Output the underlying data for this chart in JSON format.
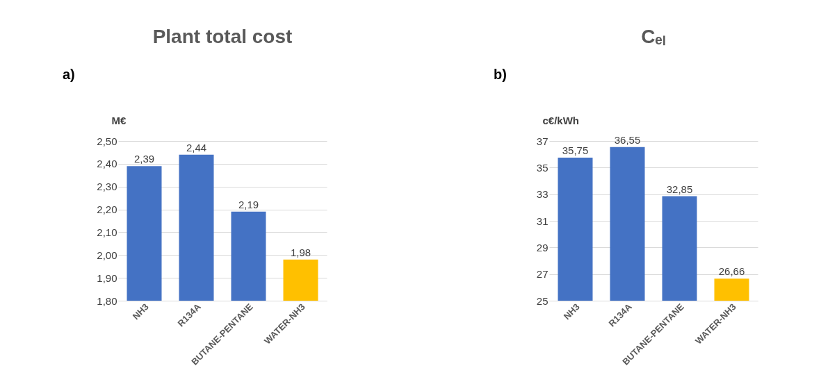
{
  "chart_data": [
    {
      "type": "bar",
      "title": "Plant total cost",
      "ylabel": "M€",
      "annotations": [
        "a)"
      ],
      "categories": [
        "NH3",
        "R134A",
        "BUTANE-PENTANE",
        "WATER-NH3"
      ],
      "values": [
        2.39,
        2.44,
        2.19,
        1.98
      ],
      "colors": [
        "#4472c4",
        "#4472c4",
        "#4472c4",
        "#ffc000"
      ],
      "value_labels": [
        "2,39",
        "2,44",
        "2,19",
        "1,98"
      ],
      "ylim": [
        1.8,
        2.5
      ],
      "yticks": [
        {
          "value": 1.8,
          "label": "1,80"
        },
        {
          "value": 1.9,
          "label": "1,90"
        },
        {
          "value": 2.0,
          "label": "2,00"
        },
        {
          "value": 2.1,
          "label": "2,10"
        },
        {
          "value": 2.2,
          "label": "2,20"
        },
        {
          "value": 2.3,
          "label": "2,30"
        },
        {
          "value": 2.4,
          "label": "2,40"
        },
        {
          "value": 2.5,
          "label": "2,50"
        }
      ],
      "grid": "y"
    },
    {
      "type": "bar",
      "title": "Cₑₗ",
      "ylabel": "c€/kWh",
      "annotations": [
        "b)"
      ],
      "categories": [
        "NH3",
        "R134A",
        "BUTANE-PENTANE",
        "WATER-NH3"
      ],
      "values": [
        35.75,
        36.55,
        32.85,
        26.66
      ],
      "colors": [
        "#4472c4",
        "#4472c4",
        "#4472c4",
        "#ffc000"
      ],
      "value_labels": [
        "35,75",
        "36,55",
        "32,85",
        "26,66"
      ],
      "ylim": [
        25,
        37
      ],
      "yticks": [
        25,
        27,
        29,
        31,
        33,
        35,
        37
      ],
      "grid": "y"
    }
  ]
}
